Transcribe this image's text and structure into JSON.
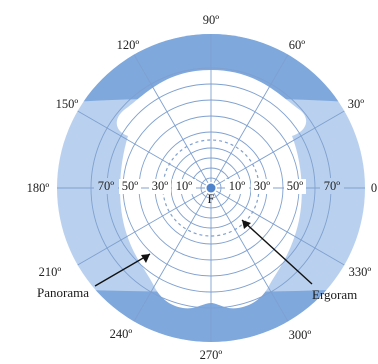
{
  "diagram": {
    "angle_labels": [
      {
        "text": "90º",
        "angle": 90
      },
      {
        "text": "60º",
        "angle": 60
      },
      {
        "text": "30º",
        "angle": 30
      },
      {
        "text": "0",
        "angle": 0
      },
      {
        "text": "330º",
        "angle": 330
      },
      {
        "text": "300º",
        "angle": 300
      },
      {
        "text": "270º",
        "angle": 270
      },
      {
        "text": "240º",
        "angle": 240
      },
      {
        "text": "210º",
        "angle": 210
      },
      {
        "text": "180º",
        "angle": 180
      },
      {
        "text": "150º",
        "angle": 150
      },
      {
        "text": "120º",
        "angle": 120
      }
    ],
    "radial_labels": [
      "10º",
      "30º",
      "50º",
      "70º"
    ],
    "center_label": "F",
    "callouts": {
      "left": "Panorama",
      "right": "Ergoram"
    },
    "colors": {
      "outer_band": "#7fa8dd",
      "field_fill": "#b9d1ef",
      "inner_field": "#ffffff",
      "grid_line": "#7fa0cf",
      "center_dot": "#4f84cc"
    }
  }
}
